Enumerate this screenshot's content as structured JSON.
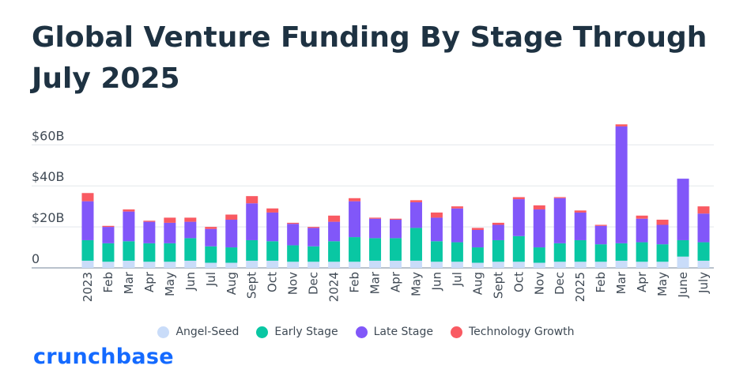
{
  "title": "Global Venture Funding By Stage Through July 2025",
  "brand": {
    "name": "crunchbase",
    "color": "#146aff"
  },
  "chart_data": {
    "type": "bar",
    "stacked": true,
    "categories": [
      "2023",
      "Feb",
      "Mar",
      "Apr",
      "May",
      "Jun",
      "Jul",
      "Aug",
      "Sept",
      "Oct",
      "Nov",
      "Dec",
      "2024",
      "Feb",
      "Mar",
      "Apr",
      "May",
      "Jun",
      "Jul",
      "Aug",
      "Sept",
      "Oct",
      "Nov",
      "Dec",
      "2025",
      "Feb",
      "Mar",
      "Apr",
      "May",
      "June",
      "July"
    ],
    "series": [
      {
        "name": "Angel-Seed",
        "color": "#c9dcf9",
        "values": [
          3.5,
          3.0,
          3.5,
          3.0,
          3.0,
          3.5,
          2.5,
          2.5,
          3.5,
          3.5,
          3.0,
          3.0,
          3.0,
          3.0,
          3.5,
          3.5,
          3.5,
          3.0,
          3.0,
          2.5,
          3.0,
          3.0,
          2.5,
          3.0,
          3.0,
          3.0,
          3.5,
          3.0,
          3.0,
          5.5,
          3.5
        ]
      },
      {
        "name": "Early Stage",
        "color": "#09c7a3",
        "values": [
          10.0,
          9.0,
          9.5,
          9.0,
          9.0,
          11.0,
          8.0,
          7.5,
          10.0,
          9.5,
          8.0,
          7.5,
          10.0,
          12.0,
          11.0,
          11.0,
          16.0,
          10.0,
          9.5,
          7.5,
          10.5,
          12.5,
          7.5,
          9.0,
          10.5,
          8.5,
          8.5,
          9.5,
          8.5,
          8.0,
          9.0
        ]
      },
      {
        "name": "Late Stage",
        "color": "#8157f9",
        "values": [
          19.0,
          8.0,
          14.5,
          10.5,
          10.0,
          8.0,
          8.5,
          13.5,
          18.0,
          14.0,
          10.5,
          9.0,
          9.5,
          17.5,
          9.5,
          9.0,
          12.5,
          11.5,
          16.5,
          8.5,
          7.5,
          18.0,
          18.5,
          22.0,
          13.5,
          9.0,
          57.0,
          11.5,
          9.5,
          30.0,
          14.0
        ]
      },
      {
        "name": "Technology Growth",
        "color": "#f95a62",
        "values": [
          4.0,
          0.5,
          1.0,
          0.5,
          2.5,
          2.0,
          1.0,
          2.5,
          3.5,
          2.0,
          0.5,
          0.5,
          3.0,
          1.5,
          0.5,
          0.5,
          1.0,
          2.5,
          1.0,
          1.0,
          1.0,
          1.0,
          2.0,
          0.5,
          1.0,
          0.5,
          1.0,
          1.5,
          2.5,
          0.0,
          3.5
        ]
      }
    ],
    "y_ticks": [
      "0",
      "$20B",
      "$40B",
      "$60B"
    ],
    "ylim": [
      0,
      70
    ],
    "grid": true,
    "legend_position": "bottom"
  }
}
